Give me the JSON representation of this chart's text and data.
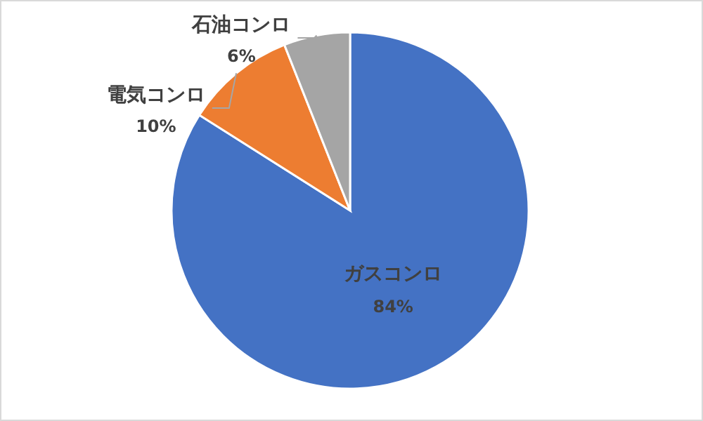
{
  "chart_data": {
    "type": "pie",
    "categories": [
      "ガスコンロ",
      "電気コンロ",
      "石油コンロ"
    ],
    "values": [
      84,
      10,
      6
    ],
    "colors": [
      "#4472c4",
      "#ed7d31",
      "#a5a5a5"
    ],
    "value_labels": [
      "84%",
      "10%",
      "6%"
    ]
  }
}
